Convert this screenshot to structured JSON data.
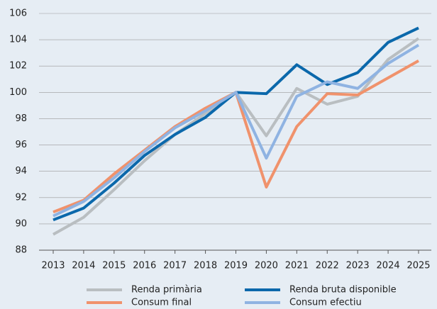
{
  "chart_data": {
    "type": "line",
    "categories": [
      "2013",
      "2014",
      "2015",
      "2016",
      "2017",
      "2018",
      "2019",
      "2020",
      "2021",
      "2022",
      "2023",
      "2024",
      "2025"
    ],
    "series": [
      {
        "name": "Renda primària",
        "color": "#b9bec1",
        "values": [
          89.2,
          90.5,
          92.6,
          94.8,
          96.8,
          98.4,
          100,
          96.7,
          100.3,
          99.1,
          99.7,
          102.5,
          104.1
        ]
      },
      {
        "name": "Renda bruta disponible",
        "color": "#0b68ab",
        "values": [
          90.3,
          91.2,
          93.1,
          95.2,
          96.8,
          98.1,
          100,
          99.9,
          102.1,
          100.6,
          101.5,
          103.8,
          104.9
        ]
      },
      {
        "name": "Consum final",
        "color": "#f0926c",
        "values": [
          90.9,
          91.8,
          93.8,
          95.6,
          97.4,
          98.8,
          100,
          92.8,
          97.4,
          99.9,
          99.8,
          101.1,
          102.4
        ]
      },
      {
        "name": "Consum efectiu",
        "color": "#8fb3e2",
        "values": [
          90.6,
          91.7,
          93.5,
          95.5,
          97.3,
          98.6,
          100,
          95.0,
          99.7,
          100.8,
          100.3,
          102.2,
          103.6
        ]
      }
    ],
    "ylim": [
      88,
      106
    ],
    "yticks": [
      88,
      90,
      92,
      94,
      96,
      98,
      100,
      102,
      104,
      106
    ],
    "grid": true
  }
}
